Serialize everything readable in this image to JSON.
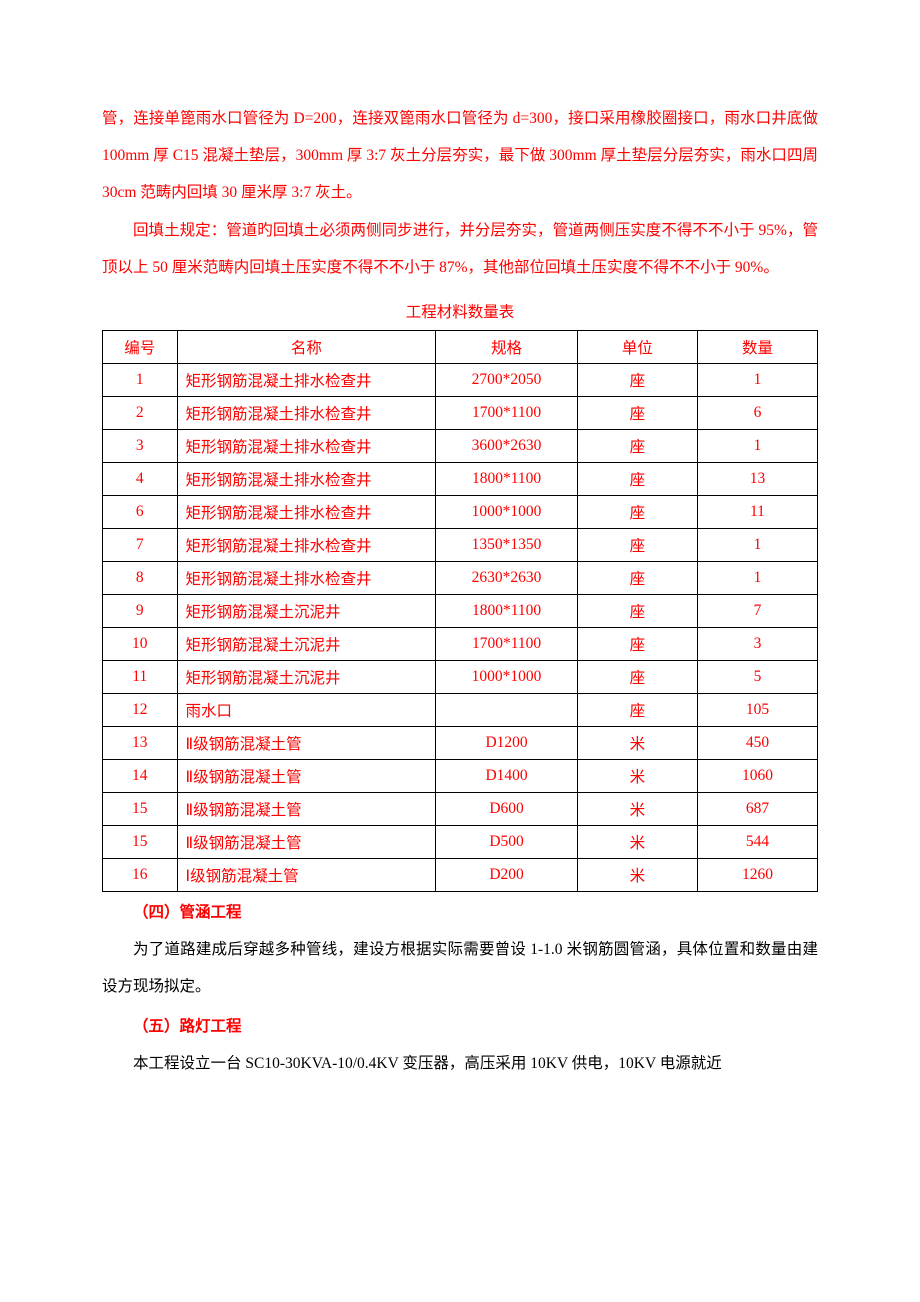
{
  "paragraphs": {
    "p1": "管，连接单篦雨水口管径为 D=200，连接双篦雨水口管径为 d=300，接口采用橡胶圈接口，雨水口井底做 100mm 厚 C15 混凝土垫层，300mm 厚 3:7 灰土分层夯实，最下做 300mm 厚土垫层分层夯实，雨水口四周 30cm 范畴内回填 30 厘米厚 3:7 灰土。",
    "p2": "回填土规定：管道旳回填土必须两侧同步进行，并分层夯实，管道两侧压实度不得不不小于 95%，管顶以上 50 厘米范畴内回填土压实度不得不不小于 87%，其他部位回填土压实度不得不不小于 90%。"
  },
  "table": {
    "title": "工程材料数量表",
    "headers": [
      "编号",
      "名称",
      "规格",
      "单位",
      "数量"
    ],
    "rows": [
      [
        "1",
        "矩形钢筋混凝土排水检查井",
        "2700*2050",
        "座",
        "1"
      ],
      [
        "2",
        "矩形钢筋混凝土排水检查井",
        "1700*1100",
        "座",
        "6"
      ],
      [
        "3",
        "矩形钢筋混凝土排水检查井",
        "3600*2630",
        "座",
        "1"
      ],
      [
        "4",
        "矩形钢筋混凝土排水检查井",
        "1800*1100",
        "座",
        "13"
      ],
      [
        "6",
        "矩形钢筋混凝土排水检查井",
        "1000*1000",
        "座",
        "11"
      ],
      [
        "7",
        "矩形钢筋混凝土排水检查井",
        "1350*1350",
        "座",
        "1"
      ],
      [
        "8",
        "矩形钢筋混凝土排水检查井",
        "2630*2630",
        "座",
        "1"
      ],
      [
        "9",
        "矩形钢筋混凝土沉泥井",
        "1800*1100",
        "座",
        "7"
      ],
      [
        "10",
        "矩形钢筋混凝土沉泥井",
        "1700*1100",
        "座",
        "3"
      ],
      [
        "11",
        "矩形钢筋混凝土沉泥井",
        "1000*1000",
        "座",
        "5"
      ],
      [
        "12",
        "雨水口",
        "",
        "座",
        "105"
      ],
      [
        "13",
        "Ⅱ级钢筋混凝土管",
        "D1200",
        "米",
        "450"
      ],
      [
        "14",
        "Ⅱ级钢筋混凝土管",
        "D1400",
        "米",
        "1060"
      ],
      [
        "15",
        "Ⅱ级钢筋混凝土管",
        "D600",
        "米",
        "687"
      ],
      [
        "15",
        "Ⅱ级钢筋混凝土管",
        "D500",
        "米",
        "544"
      ],
      [
        "16",
        "Ⅰ级钢筋混凝土管",
        "D200",
        "米",
        "1260"
      ]
    ]
  },
  "sections": {
    "s4_heading": "（四）管涵工程",
    "s4_body": "为了道路建成后穿越多种管线，建设方根据实际需要曾设 1-1.0 米钢筋圆管涵，具体位置和数量由建设方现场拟定。",
    "s5_heading": "（五）路灯工程",
    "s5_body": "本工程设立一台 SC10-30KVA-10/0.4KV 变压器，高压采用 10KV 供电，10KV 电源就近"
  },
  "style": {
    "text_color": "#ff0000",
    "black_text_color": "#000000",
    "border_color": "#000000",
    "background": "#ffffff",
    "font_size_pt": 12,
    "line_height": 2.4
  }
}
